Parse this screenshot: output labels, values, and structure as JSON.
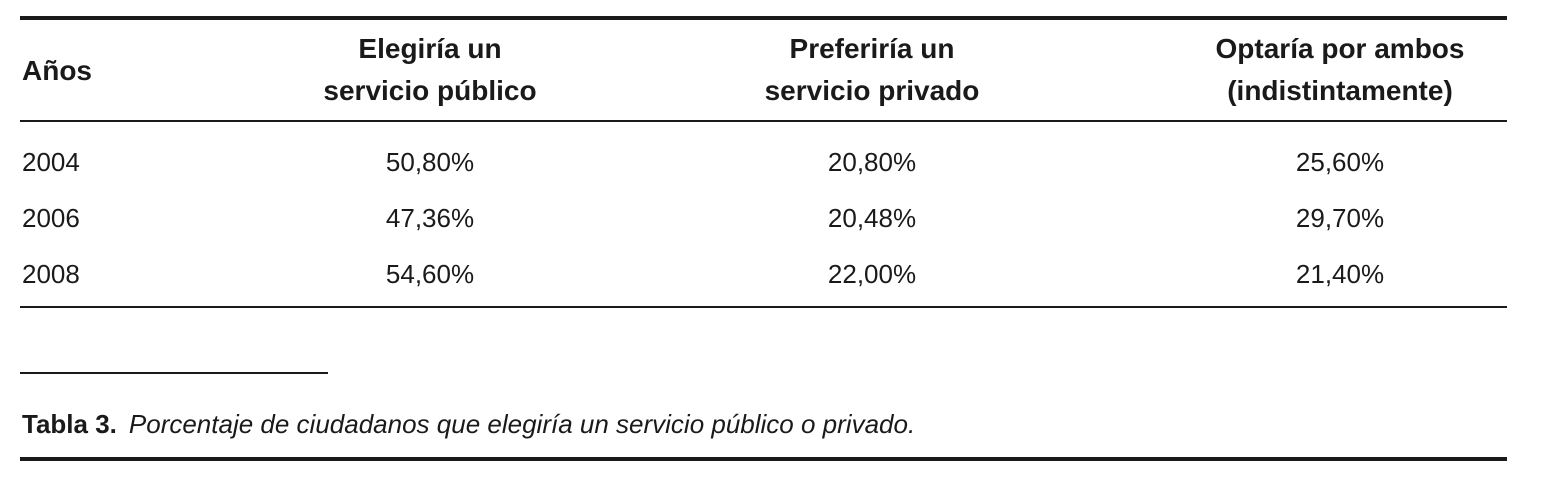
{
  "table": {
    "headers": {
      "years": "Años",
      "public": [
        "Elegiría un",
        "servicio público"
      ],
      "private": [
        "Preferiría un",
        "servicio privado"
      ],
      "both": [
        "Optaría por ambos",
        "(indistintamente)"
      ]
    },
    "rows": [
      {
        "year": "2004",
        "public": "50,80%",
        "private": "20,80%",
        "both": "25,60%"
      },
      {
        "year": "2006",
        "public": "47,36%",
        "private": "20,48%",
        "both": "29,70%"
      },
      {
        "year": "2008",
        "public": "54,60%",
        "private": "22,00%",
        "both": "21,40%"
      }
    ]
  },
  "caption": {
    "label": "Tabla 3.",
    "text": "Porcentaje de ciudadanos que elegiría un servicio público o privado."
  }
}
